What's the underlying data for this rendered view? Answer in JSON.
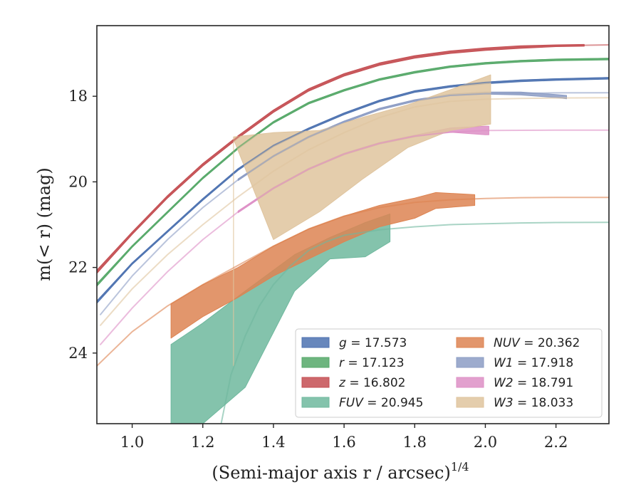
{
  "chart_data": {
    "type": "line",
    "xlabel": "(Semi-major axis r / arcsec)",
    "xlabel_sup": "1/4",
    "ylabel": "m(< r) (mag)",
    "xlim": [
      0.9,
      2.35
    ],
    "ylim": [
      25.65,
      16.35
    ],
    "y_inverted": true,
    "grid": false,
    "legend_position": "lower-right",
    "x_ticks": [
      1.0,
      1.2,
      1.4,
      1.6,
      1.8,
      2.0,
      2.2
    ],
    "x_tick_labels": [
      "1.0",
      "1.2",
      "1.4",
      "1.6",
      "1.8",
      "2.0",
      "2.2"
    ],
    "y_ticks": [
      18,
      20,
      22,
      24
    ],
    "y_tick_labels": [
      "18",
      "20",
      "22",
      "24"
    ],
    "series": [
      {
        "key": "g",
        "label_var": "g",
        "label_value": "= 17.573",
        "color": "#4c72b0",
        "legend_column": 0,
        "model_x": [
          0.9,
          1.0,
          1.1,
          1.2,
          1.3,
          1.4,
          1.5,
          1.6,
          1.7,
          1.8,
          1.9,
          2.0,
          2.1,
          2.2,
          2.35
        ],
        "model_y": [
          22.8,
          21.9,
          21.15,
          20.4,
          19.7,
          19.15,
          18.75,
          18.4,
          18.1,
          17.88,
          17.76,
          17.68,
          17.63,
          17.6,
          17.57
        ],
        "data_x": [
          0.9,
          1.0,
          1.1,
          1.2,
          1.3,
          1.4,
          1.5,
          1.6,
          1.7,
          1.8,
          1.9,
          2.0,
          2.1,
          2.2,
          2.35
        ],
        "data_lo": [
          22.78,
          21.89,
          21.14,
          20.39,
          19.69,
          19.14,
          18.74,
          18.39,
          18.09,
          17.87,
          17.75,
          17.67,
          17.62,
          17.59,
          17.56
        ],
        "data_hi": [
          22.84,
          21.93,
          21.18,
          20.43,
          19.73,
          19.18,
          18.78,
          18.43,
          18.13,
          17.91,
          17.79,
          17.71,
          17.66,
          17.63,
          17.6
        ]
      },
      {
        "key": "r",
        "label_var": "r",
        "label_value": "= 17.123",
        "color": "#55a868",
        "legend_column": 0,
        "model_x": [
          0.9,
          1.0,
          1.1,
          1.2,
          1.3,
          1.4,
          1.5,
          1.6,
          1.7,
          1.8,
          1.9,
          2.0,
          2.1,
          2.2,
          2.35
        ],
        "model_y": [
          22.4,
          21.5,
          20.7,
          19.9,
          19.2,
          18.6,
          18.15,
          17.85,
          17.6,
          17.43,
          17.3,
          17.22,
          17.17,
          17.14,
          17.12
        ],
        "data_x": [
          0.9,
          1.0,
          1.1,
          1.2,
          1.3,
          1.4,
          1.5,
          1.6,
          1.7,
          1.8,
          1.9,
          2.0,
          2.1,
          2.2,
          2.35
        ],
        "data_lo": [
          22.38,
          21.49,
          20.69,
          19.89,
          19.19,
          18.59,
          18.14,
          17.84,
          17.59,
          17.42,
          17.29,
          17.21,
          17.16,
          17.13,
          17.11
        ],
        "data_hi": [
          22.44,
          21.53,
          20.73,
          19.93,
          19.23,
          18.63,
          18.18,
          17.88,
          17.63,
          17.46,
          17.33,
          17.25,
          17.2,
          17.17,
          17.15
        ]
      },
      {
        "key": "z",
        "label_var": "z",
        "label_value": "= 16.802",
        "color": "#c44e52",
        "legend_column": 0,
        "model_x": [
          0.9,
          1.0,
          1.1,
          1.2,
          1.3,
          1.4,
          1.5,
          1.6,
          1.7,
          1.8,
          1.9,
          2.0,
          2.1,
          2.2,
          2.35
        ],
        "model_y": [
          22.1,
          21.2,
          20.35,
          19.6,
          18.95,
          18.35,
          17.85,
          17.5,
          17.25,
          17.08,
          16.97,
          16.9,
          16.85,
          16.82,
          16.8
        ],
        "data_x": [
          0.9,
          1.0,
          1.1,
          1.2,
          1.3,
          1.4,
          1.5,
          1.6,
          1.7,
          1.8,
          1.9,
          2.0,
          2.1,
          2.2,
          2.28
        ],
        "data_lo": [
          22.06,
          21.17,
          20.32,
          19.57,
          18.92,
          18.32,
          17.82,
          17.47,
          17.22,
          17.05,
          16.94,
          16.87,
          16.82,
          16.8,
          16.79
        ],
        "data_hi": [
          22.14,
          21.23,
          20.38,
          19.63,
          18.98,
          18.38,
          17.88,
          17.53,
          17.28,
          17.11,
          17.0,
          16.93,
          16.88,
          16.84,
          16.83
        ]
      },
      {
        "key": "FUV",
        "label_var": "FUV",
        "label_value": "= 20.945",
        "color": "#6fb89e",
        "legend_column": 0,
        "model_x": [
          1.252,
          1.28,
          1.32,
          1.36,
          1.4,
          1.45,
          1.5,
          1.55,
          1.6,
          1.7,
          1.8,
          1.9,
          2.0,
          2.1,
          2.2,
          2.35
        ],
        "model_y": [
          25.65,
          24.5,
          23.6,
          22.9,
          22.4,
          21.95,
          21.6,
          21.4,
          21.25,
          21.12,
          21.05,
          21.0,
          20.98,
          20.96,
          20.95,
          20.945
        ],
        "data_x": [
          1.11,
          1.2,
          1.32,
          1.46,
          1.56,
          1.66,
          1.73
        ],
        "data_lo": [
          23.8,
          23.3,
          22.55,
          21.7,
          21.3,
          20.95,
          20.75
        ],
        "data_hi": [
          25.65,
          25.65,
          24.8,
          22.55,
          21.8,
          21.75,
          21.4
        ]
      },
      {
        "key": "NUV",
        "label_var": "NUV",
        "label_value": "= 20.362",
        "color": "#dd8452",
        "legend_column": 1,
        "model_x": [
          0.9,
          1.0,
          1.1,
          1.2,
          1.3,
          1.4,
          1.5,
          1.6,
          1.7,
          1.8,
          1.9,
          2.0,
          2.1,
          2.2,
          2.35
        ],
        "model_y": [
          24.3,
          23.5,
          22.9,
          22.4,
          21.95,
          21.5,
          21.1,
          20.8,
          20.6,
          20.48,
          20.42,
          20.39,
          20.37,
          20.365,
          20.362
        ],
        "data_x": [
          1.11,
          1.2,
          1.3,
          1.4,
          1.5,
          1.6,
          1.7,
          1.8,
          1.86,
          1.97
        ],
        "data_lo": [
          22.85,
          22.4,
          22.0,
          21.5,
          21.1,
          20.8,
          20.55,
          20.38,
          20.25,
          20.3
        ],
        "data_hi": [
          23.65,
          23.15,
          22.7,
          22.2,
          21.8,
          21.4,
          21.05,
          20.85,
          20.62,
          20.55
        ]
      },
      {
        "key": "W1",
        "label_var": "W1",
        "label_value": "= 17.918",
        "color": "#8c9cc4",
        "legend_column": 1,
        "model_x": [
          0.91,
          1.0,
          1.1,
          1.2,
          1.3,
          1.4,
          1.5,
          1.6,
          1.7,
          1.8,
          1.9,
          2.0,
          2.1,
          2.2,
          2.35
        ],
        "model_y": [
          23.1,
          22.2,
          21.35,
          20.6,
          19.95,
          19.4,
          18.95,
          18.6,
          18.3,
          18.1,
          17.98,
          17.94,
          17.93,
          17.92,
          17.918
        ],
        "data_x": [
          1.3,
          1.4,
          1.5,
          1.6,
          1.7,
          1.8,
          1.9,
          2.0,
          2.1,
          2.2,
          2.23
        ],
        "data_lo": [
          19.93,
          19.38,
          18.93,
          18.58,
          18.28,
          18.08,
          17.95,
          17.9,
          17.9,
          17.96,
          17.98
        ],
        "data_hi": [
          19.97,
          19.42,
          18.97,
          18.62,
          18.32,
          18.12,
          17.99,
          17.95,
          17.97,
          18.03,
          18.06
        ]
      },
      {
        "key": "W2",
        "label_var": "W2",
        "label_value": "= 18.791",
        "color": "#dd8fc6",
        "legend_column": 1,
        "model_x": [
          0.91,
          1.0,
          1.1,
          1.2,
          1.3,
          1.4,
          1.5,
          1.6,
          1.7,
          1.8,
          1.9,
          2.0,
          2.1,
          2.2,
          2.35
        ],
        "model_y": [
          23.8,
          22.95,
          22.1,
          21.35,
          20.7,
          20.15,
          19.7,
          19.35,
          19.1,
          18.93,
          18.84,
          18.8,
          18.795,
          18.792,
          18.791
        ],
        "data_x": [
          1.3,
          1.4,
          1.5,
          1.6,
          1.7,
          1.8,
          1.9,
          2.0,
          2.01
        ],
        "data_lo": [
          20.68,
          20.13,
          19.68,
          19.33,
          19.08,
          18.91,
          18.74,
          18.7,
          18.7
        ],
        "data_hi": [
          20.72,
          20.17,
          19.72,
          19.37,
          19.12,
          18.95,
          18.84,
          18.9,
          18.9
        ]
      },
      {
        "key": "W3",
        "label_var": "W3",
        "label_value": "= 18.033",
        "color": "#dfc49e",
        "legend_column": 1,
        "model_x": [
          0.91,
          1.0,
          1.1,
          1.2,
          1.3,
          1.4,
          1.5,
          1.6,
          1.7,
          1.8,
          1.9,
          2.0,
          2.1,
          2.2,
          2.35
        ],
        "model_y": [
          23.35,
          22.5,
          21.7,
          21.0,
          20.35,
          19.75,
          19.25,
          18.85,
          18.5,
          18.25,
          18.12,
          18.07,
          18.05,
          18.04,
          18.033
        ],
        "data_x": [
          1.287,
          1.287,
          1.4,
          1.53,
          1.65,
          1.78,
          1.9,
          2.015
        ],
        "data_lo": [
          24.3,
          18.95,
          18.85,
          18.8,
          18.5,
          18.2,
          17.85,
          17.5
        ],
        "data_hi": [
          24.3,
          19.0,
          21.35,
          20.7,
          19.95,
          19.2,
          18.8,
          18.65
        ]
      }
    ]
  }
}
